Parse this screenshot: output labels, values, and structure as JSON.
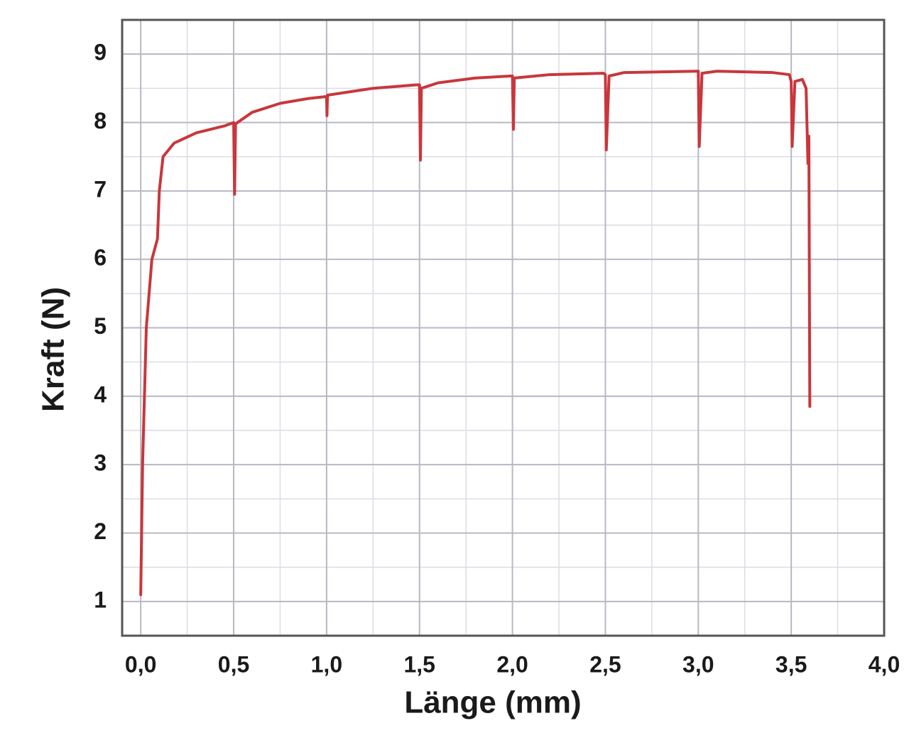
{
  "chart_data": {
    "type": "line",
    "x_label": "Länge (mm)",
    "y_label": "Kraft (N)",
    "xlim": [
      -0.1,
      4.0
    ],
    "ylim": [
      0.5,
      9.5
    ],
    "xticks": [
      {
        "value": 0,
        "label": "0,0"
      },
      {
        "value": 0.5,
        "label": "0,5"
      },
      {
        "value": 1,
        "label": "1,0"
      },
      {
        "value": 1.5,
        "label": "1,5"
      },
      {
        "value": 2,
        "label": "2,0"
      },
      {
        "value": 2.5,
        "label": "2,5"
      },
      {
        "value": 3,
        "label": "3,0"
      },
      {
        "value": 3.5,
        "label": "3,5"
      },
      {
        "value": 4,
        "label": "4,0"
      }
    ],
    "yticks": [
      1,
      2,
      3,
      4,
      5,
      6,
      7,
      8,
      9
    ],
    "grid": true,
    "minor_grid": true,
    "series": [
      {
        "color": "#c8373c",
        "x": [
          0.0,
          0.01,
          0.03,
          0.06,
          0.09,
          0.1,
          0.12,
          0.18,
          0.3,
          0.45,
          0.5,
          0.505,
          0.51,
          0.6,
          0.75,
          0.9,
          1.0,
          1.002,
          1.005,
          1.25,
          1.48,
          1.5,
          1.505,
          1.51,
          1.6,
          1.8,
          1.99,
          2.0,
          2.005,
          2.01,
          2.2,
          2.49,
          2.5,
          2.505,
          2.52,
          2.6,
          2.99,
          3.0,
          3.005,
          3.02,
          3.1,
          3.4,
          3.49,
          3.5,
          3.505,
          3.52,
          3.56,
          3.58,
          3.59,
          3.595,
          3.6
        ],
        "values": [
          1.1,
          3.0,
          5.0,
          6.0,
          6.3,
          7.0,
          7.5,
          7.7,
          7.85,
          7.95,
          8.0,
          6.95,
          7.98,
          8.15,
          8.28,
          8.35,
          8.38,
          8.1,
          8.4,
          8.5,
          8.55,
          8.55,
          7.45,
          8.5,
          8.58,
          8.65,
          8.68,
          8.68,
          7.9,
          8.65,
          8.7,
          8.72,
          8.7,
          7.6,
          8.68,
          8.73,
          8.75,
          8.75,
          7.65,
          8.72,
          8.75,
          8.73,
          8.7,
          8.6,
          7.65,
          8.6,
          8.63,
          8.5,
          7.4,
          7.8,
          3.85
        ]
      }
    ]
  }
}
